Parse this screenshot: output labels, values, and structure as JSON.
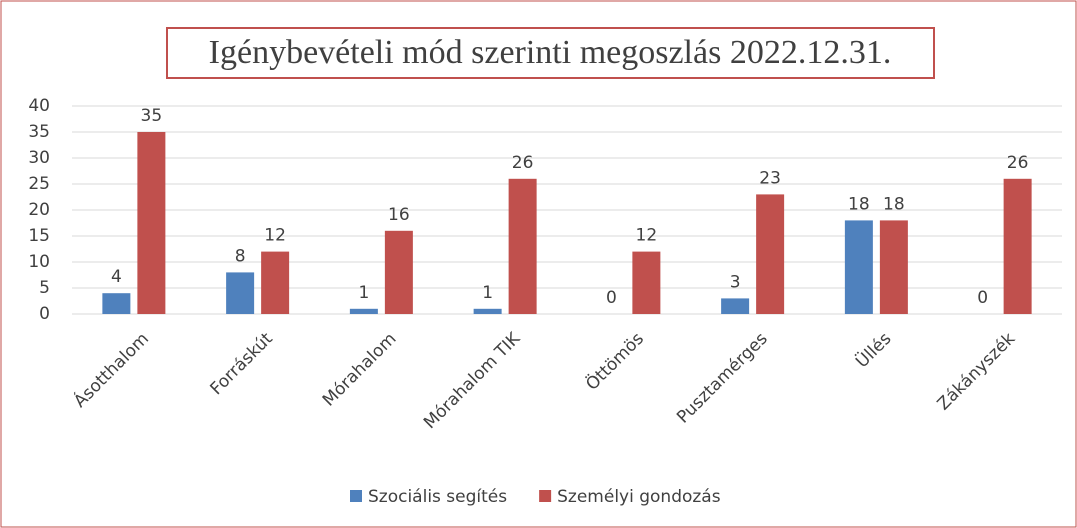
{
  "chart_data": {
    "type": "bar",
    "title": "Igénybevételi mód szerinti megoszlás 2022.12.31.",
    "categories": [
      "Ásotthalom",
      "Forráskút",
      "Mórahalom",
      "Mórahalom TIK",
      "Öttömös",
      "Pusztamérges",
      "Üllés",
      "Zákányszék"
    ],
    "series": [
      {
        "name": "Szociális segítés",
        "color": "#4f81bd",
        "values": [
          4,
          8,
          1,
          1,
          0,
          3,
          18,
          0
        ]
      },
      {
        "name": "Személyi gondozás",
        "color": "#c0504d",
        "values": [
          35,
          12,
          16,
          26,
          12,
          23,
          18,
          26
        ]
      }
    ],
    "ylim": [
      0,
      40
    ],
    "yticks": [
      0,
      5,
      10,
      15,
      20,
      25,
      30,
      35,
      40
    ],
    "grid": true,
    "legend": "bottom"
  }
}
